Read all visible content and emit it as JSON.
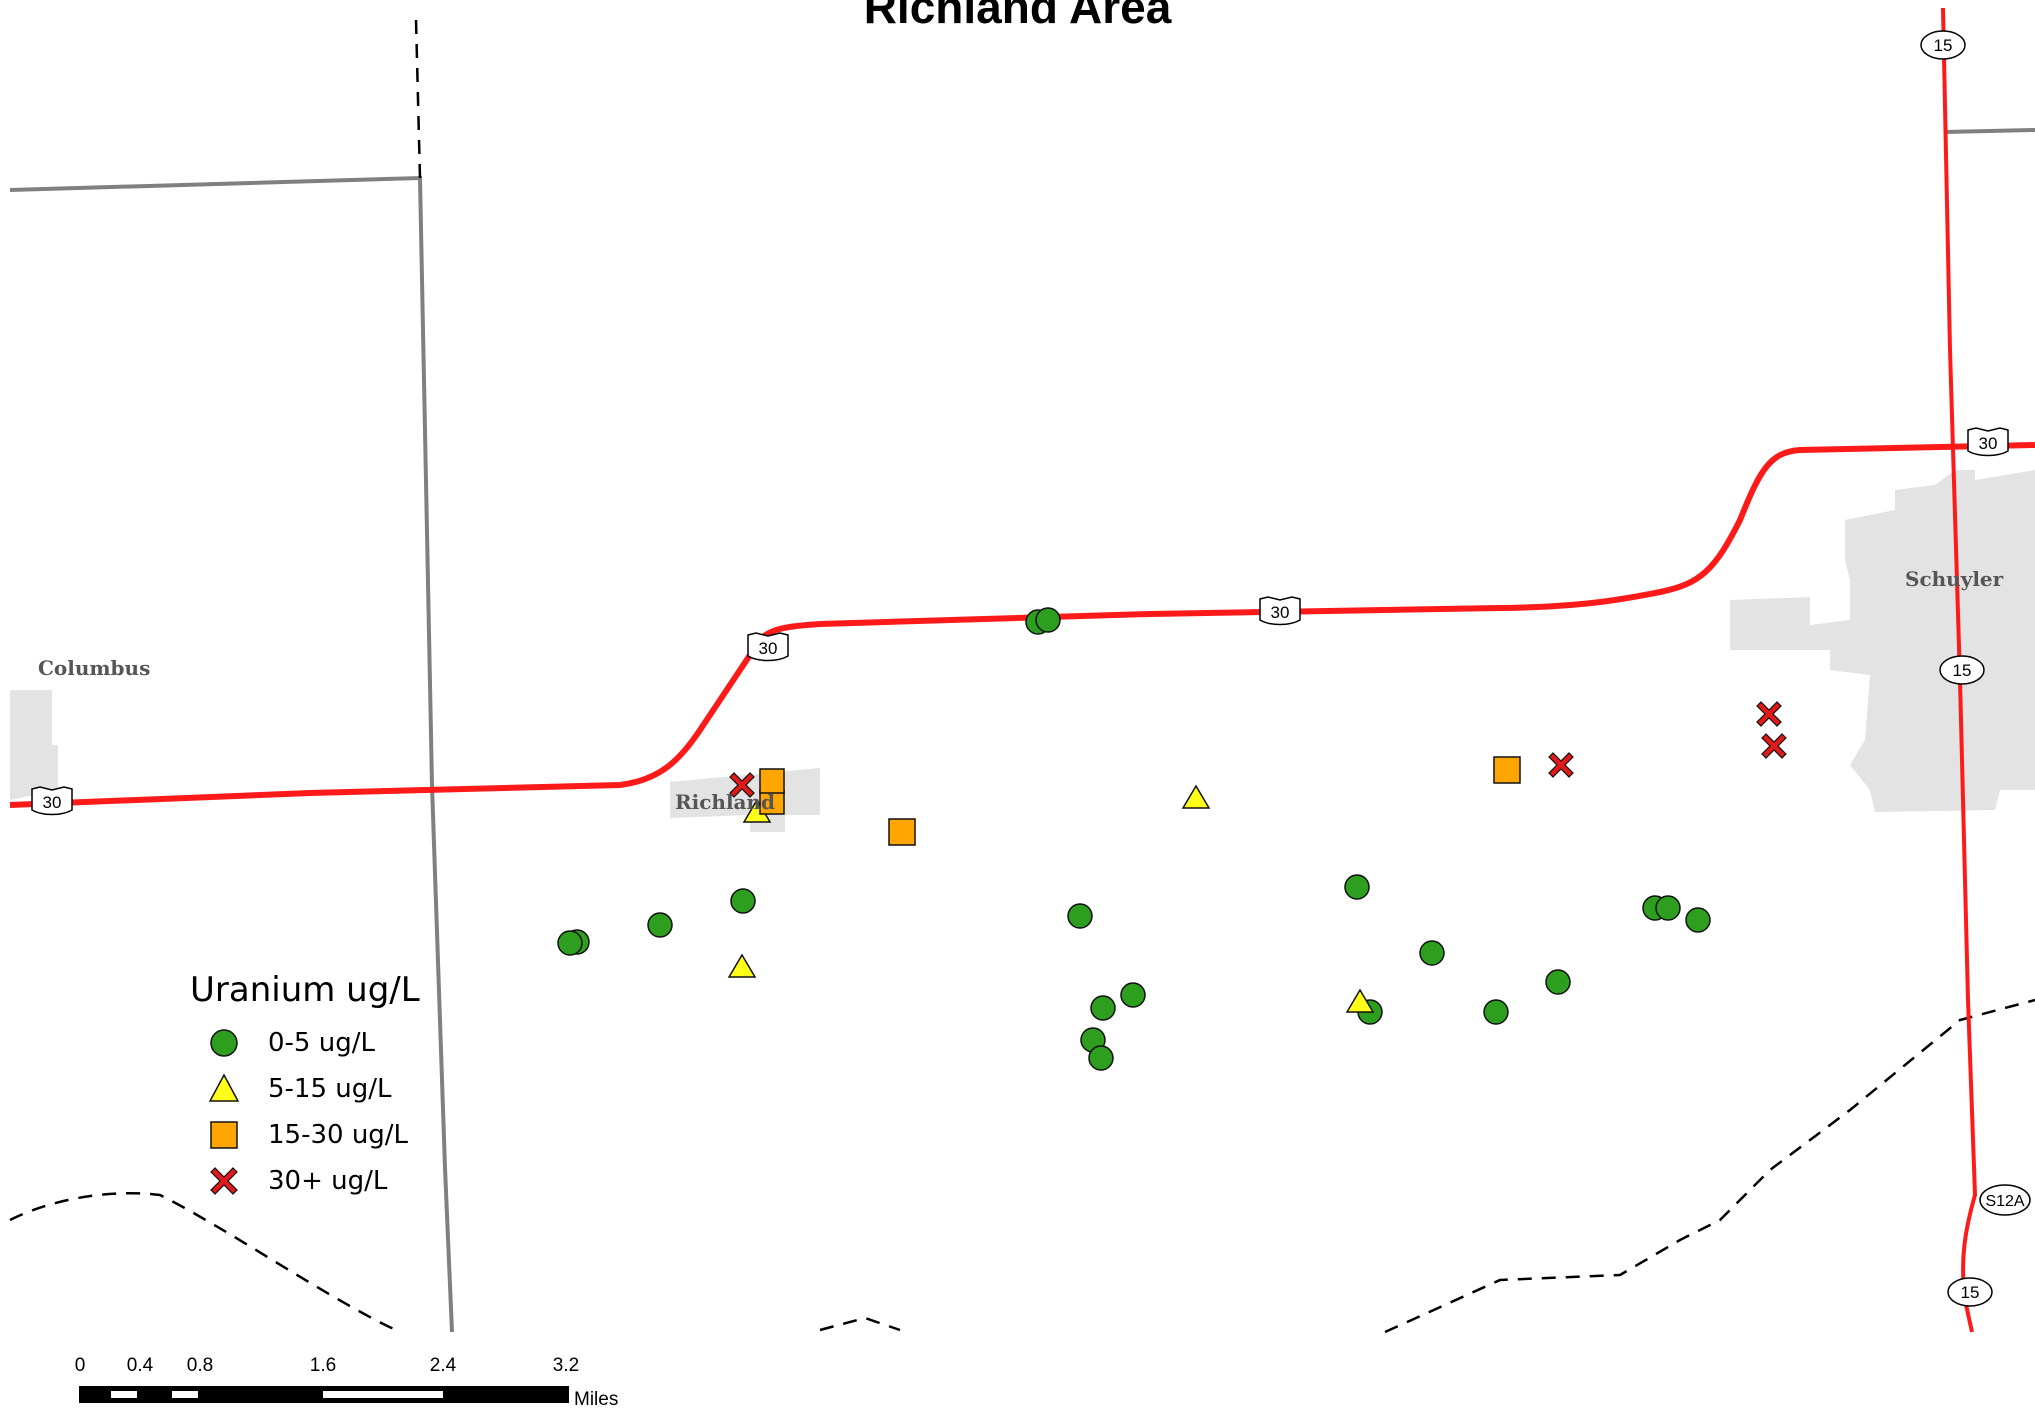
{
  "title": "Richland Area",
  "towns": [
    {
      "name": "Columbus"
    },
    {
      "name": "Richland"
    },
    {
      "name": "Schuyler"
    }
  ],
  "route_shields": [
    {
      "label": "15"
    },
    {
      "label": "15"
    },
    {
      "label": "15"
    },
    {
      "label": "30"
    },
    {
      "label": "30"
    },
    {
      "label": "30"
    },
    {
      "label": "30"
    },
    {
      "label": "S12A"
    }
  ],
  "legend": {
    "title": "Uranium ug/L",
    "items": [
      {
        "label": "0-5 ug/L",
        "color": "#2e9e1f",
        "shape": "circle"
      },
      {
        "label": "5-15 ug/L",
        "color": "#ffff1a",
        "shape": "triangle"
      },
      {
        "label": "15-30 ug/L",
        "color": "#ffa500",
        "shape": "square"
      },
      {
        "label": "30+ ug/L",
        "color": "#e01a1a",
        "shape": "x"
      }
    ]
  },
  "scale_bar": {
    "ticks": [
      "0",
      "0.4",
      "0.8",
      "1.6",
      "2.4",
      "3.2"
    ],
    "unit": "Miles"
  },
  "colors": {
    "road": "#ff1a1a",
    "county_line": "#808080",
    "town_area": "#e3e3e3"
  }
}
